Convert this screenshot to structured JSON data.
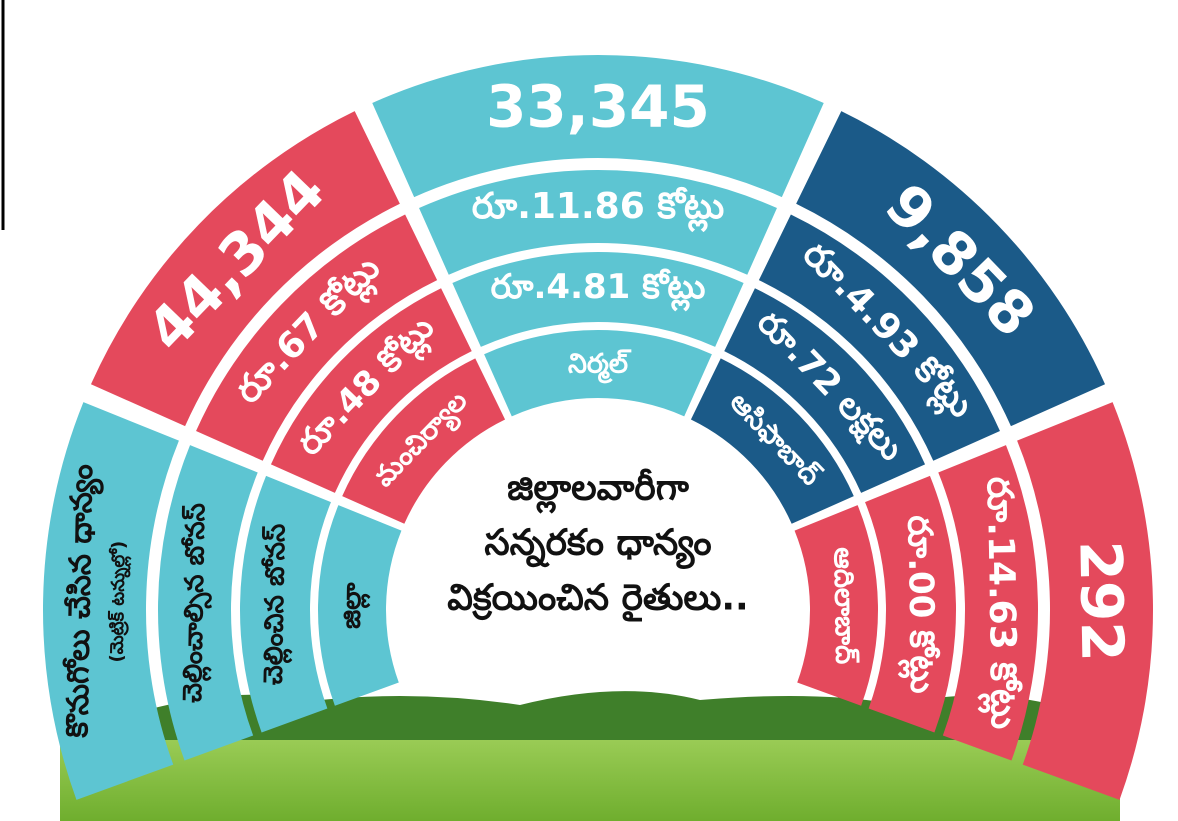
{
  "title_lines": [
    "జిల్లాలవారీగా",
    "సన్నరకం ధాన్యం",
    "విక్రయించిన రైతులు.."
  ],
  "row_labels": {
    "purchased": "కొనుగోలు చేసిన ధాన్యం",
    "unit": "(మెట్రిక్ టన్నుల్లో)",
    "bonus_due": "చెల్లించాల్సిన బోనస్",
    "bonus_paid": "చెల్లించిన బోనస్",
    "district": "జిల్లా"
  },
  "districts": [
    {
      "name": "మంచిర్యాల",
      "purchased": "44,344",
      "bonus_due": "రూ.67 కోట్లు",
      "bonus_paid": "రూ.48 కోట్లు",
      "color": "#e4495c"
    },
    {
      "name": "నిర్మల్",
      "purchased": "33,345",
      "bonus_due": "రూ.11.86 కోట్లు",
      "bonus_paid": "రూ.4.81 కోట్లు",
      "color": "#5dc5d2"
    },
    {
      "name": "ఆసిఫాబాద్",
      "purchased": "9,858",
      "bonus_due": "రూ.4.93 కోట్లు",
      "bonus_paid": "రూ.72 లక్షలు",
      "color": "#1b5a88"
    },
    {
      "name": "ఆదిలాబాద్",
      "purchased": "292",
      "bonus_due": "రూ.14.63 కోట్లు",
      "bonus_paid": "రూ.00 కోట్లు",
      "color": "#e4495c"
    }
  ]
}
